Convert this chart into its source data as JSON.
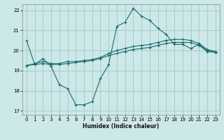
{
  "xlabel": "Humidex (Indice chaleur)",
  "ylabel": "",
  "background_color": "#cce8e8",
  "grid_color": "#aacccc",
  "line_color": "#1a6b6b",
  "xlim": [
    -0.5,
    23.5
  ],
  "ylim": [
    16.8,
    22.3
  ],
  "xticks": [
    0,
    1,
    2,
    3,
    4,
    5,
    6,
    7,
    8,
    9,
    10,
    11,
    12,
    13,
    14,
    15,
    16,
    17,
    18,
    19,
    20,
    21,
    22,
    23
  ],
  "yticks": [
    17,
    18,
    19,
    20,
    21,
    22
  ],
  "line1_x": [
    0,
    1,
    2,
    3,
    4,
    5,
    6,
    7,
    8,
    9,
    10,
    11,
    12,
    13,
    14,
    15,
    16,
    17,
    18,
    19,
    20,
    21,
    22,
    23
  ],
  "line1_y": [
    20.5,
    19.3,
    19.6,
    19.2,
    18.3,
    18.1,
    17.3,
    17.3,
    17.45,
    18.6,
    19.3,
    21.2,
    21.4,
    22.1,
    21.7,
    21.5,
    21.1,
    20.8,
    20.3,
    20.3,
    20.1,
    20.3,
    20.0,
    19.9
  ],
  "line2_x": [
    0,
    1,
    2,
    3,
    4,
    5,
    6,
    7,
    8,
    9,
    10,
    11,
    12,
    13,
    14,
    15,
    16,
    17,
    18,
    19,
    20,
    21,
    22,
    23
  ],
  "line2_y": [
    19.25,
    19.35,
    19.45,
    19.35,
    19.35,
    19.45,
    19.45,
    19.5,
    19.55,
    19.65,
    19.85,
    20.0,
    20.1,
    20.2,
    20.25,
    20.3,
    20.4,
    20.5,
    20.55,
    20.55,
    20.5,
    20.35,
    20.05,
    19.95
  ],
  "line3_x": [
    0,
    1,
    2,
    3,
    4,
    5,
    6,
    7,
    8,
    9,
    10,
    11,
    12,
    13,
    14,
    15,
    16,
    17,
    18,
    19,
    20,
    21,
    22,
    23
  ],
  "line3_y": [
    19.25,
    19.3,
    19.35,
    19.3,
    19.3,
    19.35,
    19.4,
    19.45,
    19.5,
    19.6,
    19.75,
    19.85,
    19.95,
    20.05,
    20.1,
    20.15,
    20.25,
    20.35,
    20.4,
    20.4,
    20.4,
    20.25,
    19.95,
    19.9
  ]
}
